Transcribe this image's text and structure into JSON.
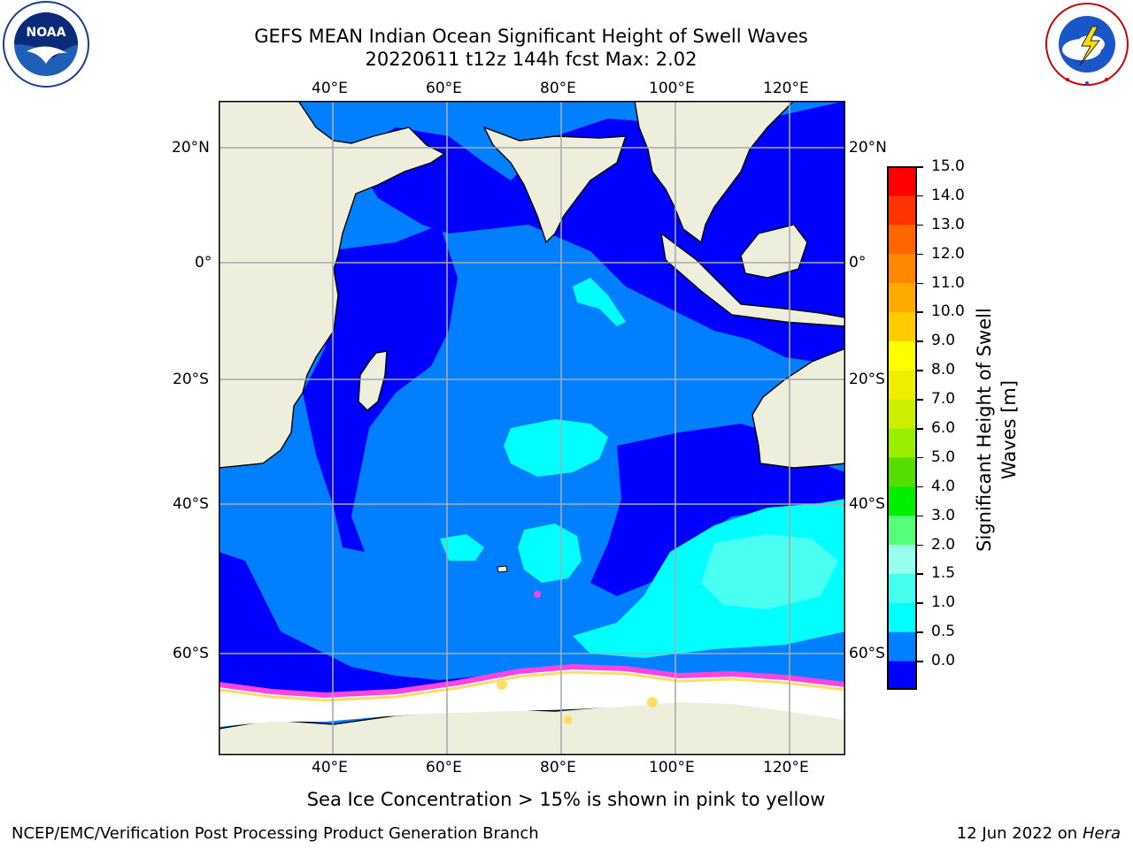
{
  "title": {
    "line1": "GEFS MEAN Indian Ocean Significant Height of Swell Waves",
    "line2": "20220611 t12z 144h fcst   Max: 2.02"
  },
  "logos": {
    "left_name": "NOAA",
    "left_ring_text": "NATIONAL OCEANIC AND ATMOSPHERIC ADMINISTRATION · U.S. DEPARTMENT OF COMMERCE",
    "right_ring_text": "NATIONAL WEATHER SERVICE"
  },
  "map": {
    "lon_ticks": [
      "40°E",
      "60°E",
      "80°E",
      "100°E",
      "120°E"
    ],
    "lat_ticks_left": [
      "20°N",
      "0°",
      "20°S",
      "40°S",
      "60°S"
    ],
    "lat_ticks_right": [
      "20°N",
      "0°",
      "20°S",
      "40°S",
      "60°S"
    ],
    "colors": {
      "land": "#eeeedd",
      "ocean_0_05": "#0000ff",
      "ocean_05_1": "#0080ff",
      "ocean_1_15": "#00ffff",
      "ocean_15_2": "#55ffee",
      "ice": "#ffffff",
      "ice_pink": "#ff44dd",
      "ice_yellow": "#ffdd66",
      "grid": "#aaaaaa"
    }
  },
  "colorbar": {
    "label": "Significant Height of Swell Waves [m]",
    "ticks": [
      "15.0",
      "14.0",
      "13.0",
      "12.0",
      "11.0",
      "10.0",
      "9.0",
      "8.0",
      "7.0",
      "6.0",
      "5.0",
      "4.0",
      "3.0",
      "2.0",
      "1.5",
      "1.0",
      "0.5",
      "0.0"
    ],
    "colors": [
      "#0000ff",
      "#0080ff",
      "#00ffff",
      "#44ffee",
      "#99ffee",
      "#55ff77",
      "#00ee00",
      "#55dd00",
      "#99ee00",
      "#ccee00",
      "#eeee00",
      "#ffff00",
      "#ffcc00",
      "#ffaa00",
      "#ff8800",
      "#ff6600",
      "#ff3300",
      "#ff0000"
    ]
  },
  "caption": "Sea Ice Concentration > 15% is shown in pink to yellow",
  "footer": {
    "left": "NCEP/EMC/Verification Post Processing Product Generation Branch",
    "right_date": "12 Jun 2022 on",
    "right_host": "Hera"
  }
}
